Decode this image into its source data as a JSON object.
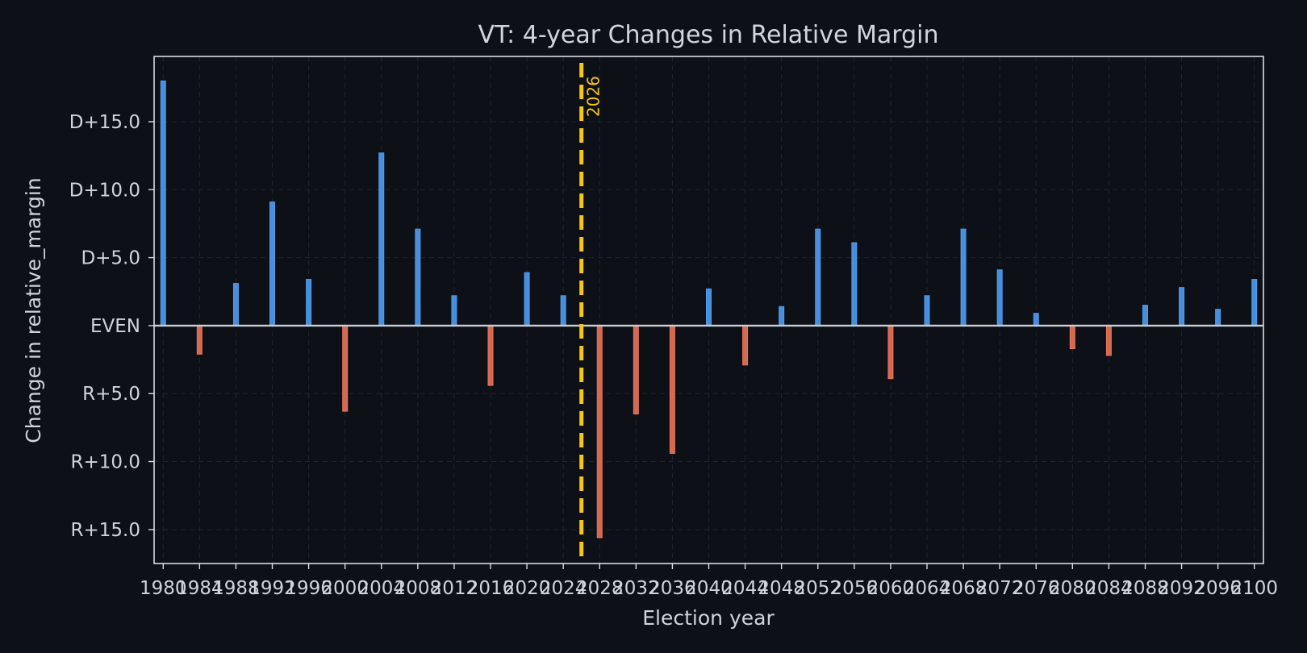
{
  "chart_data": {
    "type": "bar",
    "title": "VT: 4-year Changes in Relative Margin",
    "xlabel": "Election year",
    "ylabel": "Change in relative_margin",
    "x": [
      1980,
      1984,
      1988,
      1992,
      1996,
      2000,
      2004,
      2008,
      2012,
      2016,
      2020,
      2024,
      2028,
      2032,
      2036,
      2040,
      2044,
      2048,
      2052,
      2056,
      2060,
      2064,
      2068,
      2072,
      2076,
      2080,
      2084,
      2088,
      2092,
      2096,
      2100
    ],
    "x_tick_labels": [
      "1980",
      "1984",
      "1988",
      "1992",
      "1996",
      "2000",
      "2004",
      "2008",
      "2012",
      "2016",
      "2020",
      "2024",
      "2028",
      "2032",
      "2036",
      "2040",
      "2044",
      "2048",
      "2052",
      "2056",
      "2060",
      "2064",
      "2068",
      "2072",
      "2076",
      "2080",
      "2084",
      "2088",
      "2092",
      "2096",
      "2100"
    ],
    "values": [
      18.0,
      -2.1,
      3.1,
      9.1,
      3.4,
      -6.3,
      12.7,
      7.1,
      2.2,
      -4.4,
      3.9,
      2.2,
      -15.6,
      -6.5,
      -9.4,
      2.7,
      -2.9,
      1.4,
      7.1,
      6.1,
      -3.9,
      2.2,
      7.1,
      4.1,
      0.9,
      -1.7,
      -2.2,
      1.5,
      2.8,
      1.2,
      3.4
    ],
    "y_ticks": [
      15,
      10,
      5,
      0,
      -5,
      -10,
      -15
    ],
    "y_tick_labels": [
      "D+15.0",
      "D+10.0",
      "D+5.0",
      "EVEN",
      "R+5.0",
      "R+10.0",
      "R+15.0"
    ],
    "ylim": [
      -17.5,
      19.8
    ],
    "xlim": [
      1979,
      2101
    ],
    "reference_line": {
      "x": 2026,
      "label": "2026",
      "color": "#f5c518"
    },
    "colors": {
      "positive": "#4f9cf0",
      "negative": "#e8735a",
      "background": "#0d1017"
    },
    "grid": true
  }
}
